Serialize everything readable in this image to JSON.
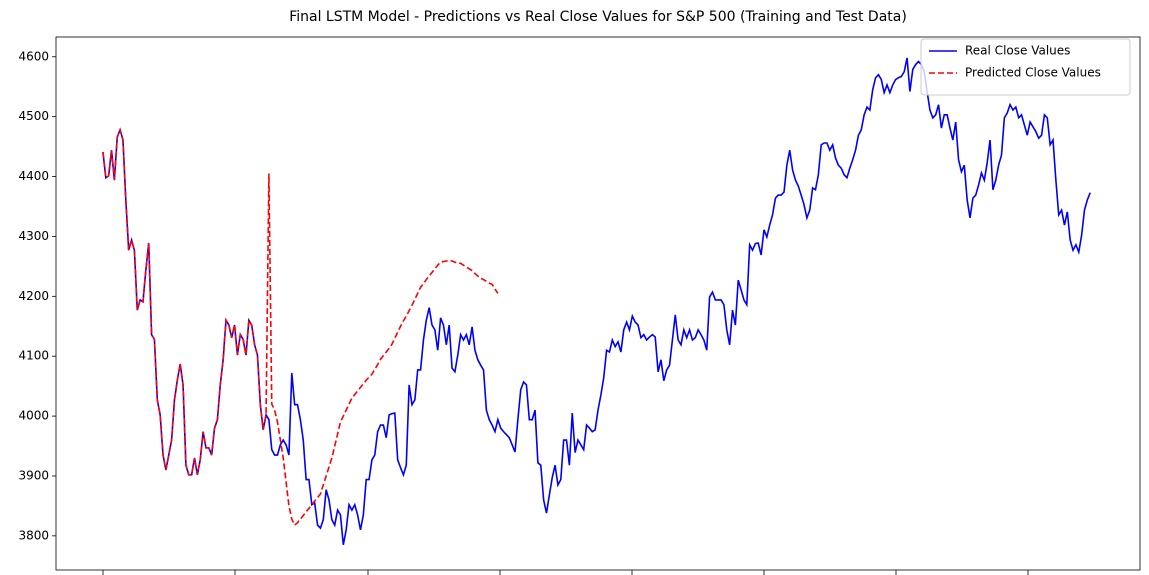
{
  "chart_data": {
    "type": "line",
    "title": "Final LSTM Model - Predictions vs Real Close Values for S&P 500 (Training and Test Data)",
    "xlim": [
      -16.4,
      362.4
    ],
    "ylim": [
      3743,
      4633
    ],
    "yticks": [
      3800,
      3900,
      4000,
      4100,
      4200,
      4300,
      4400,
      4500,
      4600
    ],
    "legend": "upper right",
    "series": [
      {
        "name": "Real Close Values",
        "color": "#0000ff",
        "dash": "solid",
        "values": [
          4441,
          4398,
          4401,
          4444,
          4394,
          4466,
          4478,
          4461,
          4361,
          4277,
          4294,
          4277,
          4177,
          4194,
          4191,
          4244,
          4289,
          4136,
          4128,
          4027,
          4002,
          3935,
          3910,
          3935,
          3960,
          4027,
          4060,
          4087,
          4052,
          3918,
          3902,
          3902,
          3930,
          3902,
          3927,
          3974,
          3947,
          3947,
          3935,
          3980,
          3994,
          4052,
          4094,
          4160,
          4152,
          4131,
          4152,
          4102,
          4136,
          4128,
          4102,
          4160,
          4152,
          4119,
          4102,
          4019,
          3977,
          4002,
          3994,
          3944,
          3935,
          3935,
          3952,
          3960,
          3952,
          3935,
          4072,
          4019,
          4019,
          3994,
          3960,
          3894,
          3894,
          3852,
          3855,
          3818,
          3813,
          3827,
          3877,
          3860,
          3827,
          3818,
          3843,
          3835,
          3785,
          3810,
          3852,
          3843,
          3852,
          3835,
          3810,
          3835,
          3894,
          3894,
          3927,
          3935,
          3974,
          3985,
          3985,
          3964,
          4002,
          4004,
          4005,
          3927,
          3914,
          3902,
          3918,
          4052,
          4019,
          4027,
          4077,
          4077,
          4127,
          4160,
          4181,
          4152,
          4144,
          4110,
          4164,
          4152,
          4119,
          4152,
          4080,
          4074,
          4102,
          4136,
          4127,
          4136,
          4119,
          4149,
          4110,
          4094,
          4085,
          4077,
          4010,
          3994,
          3985,
          3974,
          3994,
          3980,
          3974,
          3969,
          3964,
          3952,
          3940,
          3994,
          4044,
          4057,
          4052,
          3994,
          3994,
          4010,
          3922,
          3918,
          3860,
          3838,
          3868,
          3897,
          3918,
          3885,
          3894,
          3960,
          3960,
          3918,
          4005,
          3939,
          3960,
          3952,
          3944,
          3985,
          3980,
          3974,
          3977,
          4010,
          4035,
          4064,
          4110,
          4107,
          4127,
          4116,
          4124,
          4107,
          4144,
          4157,
          4144,
          4167,
          4157,
          4152,
          4131,
          4136,
          4127,
          4132,
          4136,
          4132,
          4074,
          4094,
          4059,
          4077,
          4085,
          4127,
          4169,
          4127,
          4119,
          4144,
          4131,
          4144,
          4127,
          4131,
          4144,
          4136,
          4127,
          4110,
          4199,
          4207,
          4194,
          4194,
          4194,
          4186,
          4144,
          4119,
          4177,
          4152,
          4227,
          4211,
          4194,
          4186,
          4286,
          4277,
          4288,
          4289,
          4269,
          4311,
          4299,
          4319,
          4336,
          4364,
          4369,
          4369,
          4374,
          4419,
          4444,
          4411,
          4394,
          4384,
          4369,
          4353,
          4331,
          4344,
          4381,
          4378,
          4403,
          4453,
          4456,
          4456,
          4444,
          4453,
          4431,
          4419,
          4414,
          4403,
          4398,
          4414,
          4428,
          4444,
          4469,
          4478,
          4503,
          4516,
          4511,
          4545,
          4565,
          4570,
          4562,
          4540,
          4553,
          4540,
          4553,
          4562,
          4565,
          4567,
          4575,
          4598,
          4542,
          4579,
          4587,
          4592,
          4587,
          4575,
          4542,
          4511,
          4498,
          4503,
          4520,
          4481,
          4503,
          4503,
          4481,
          4461,
          4491,
          4428,
          4408,
          4419,
          4361,
          4331,
          4364,
          4369,
          4386,
          4406,
          4394,
          4423,
          4461,
          4378,
          4394,
          4419,
          4436,
          4498,
          4506,
          4520,
          4511,
          4516,
          4498,
          4503,
          4486,
          4469,
          4491,
          4483,
          4475,
          4464,
          4469,
          4503,
          4498,
          4453,
          4461,
          4394,
          4336,
          4344,
          4319,
          4341,
          4294,
          4277,
          4286,
          4274,
          4302,
          4344,
          4361,
          4373
        ]
      },
      {
        "name": "Predicted Close Values",
        "color": "#ff0000",
        "dash": "dashed",
        "values": [
          4441,
          4398,
          4401,
          4444,
          4394,
          4466,
          4478,
          4461,
          4361,
          4277,
          4294,
          4277,
          4177,
          4194,
          4191,
          4244,
          4289,
          4136,
          4128,
          4027,
          4002,
          3935,
          3910,
          3935,
          3960,
          4027,
          4060,
          4087,
          4052,
          3918,
          3902,
          3902,
          3930,
          3902,
          3927,
          3974,
          3947,
          3947,
          3935,
          3980,
          3994,
          4052,
          4094,
          4160,
          4152,
          4131,
          4152,
          4102,
          4136,
          4128,
          4102,
          4160,
          4152,
          4119,
          4102,
          4019,
          3977,
          4002,
          4405,
          4020,
          4010,
          3990,
          3960,
          3930,
          3890,
          3850,
          3828,
          3818,
          3822,
          3828,
          3834,
          3840,
          3846,
          3852,
          3858,
          3864,
          3870,
          3885,
          3900,
          3915,
          3930,
          3950,
          3970,
          3990,
          4000,
          4010,
          4020,
          4030,
          4036,
          4042,
          4048,
          4054,
          4060,
          4065,
          4070,
          4078,
          4086,
          4095,
          4101,
          4107,
          4113,
          4120,
          4130,
          4140,
          4150,
          4159,
          4167,
          4176,
          4185,
          4195,
          4205,
          4215,
          4221,
          4228,
          4234,
          4240,
          4246,
          4252,
          4257,
          4258,
          4259,
          4260,
          4259,
          4257,
          4256,
          4255,
          4252,
          4249,
          4246,
          4243,
          4238,
          4234,
          4230,
          4228,
          4225,
          4222,
          4220,
          4212,
          4205
        ]
      }
    ]
  }
}
